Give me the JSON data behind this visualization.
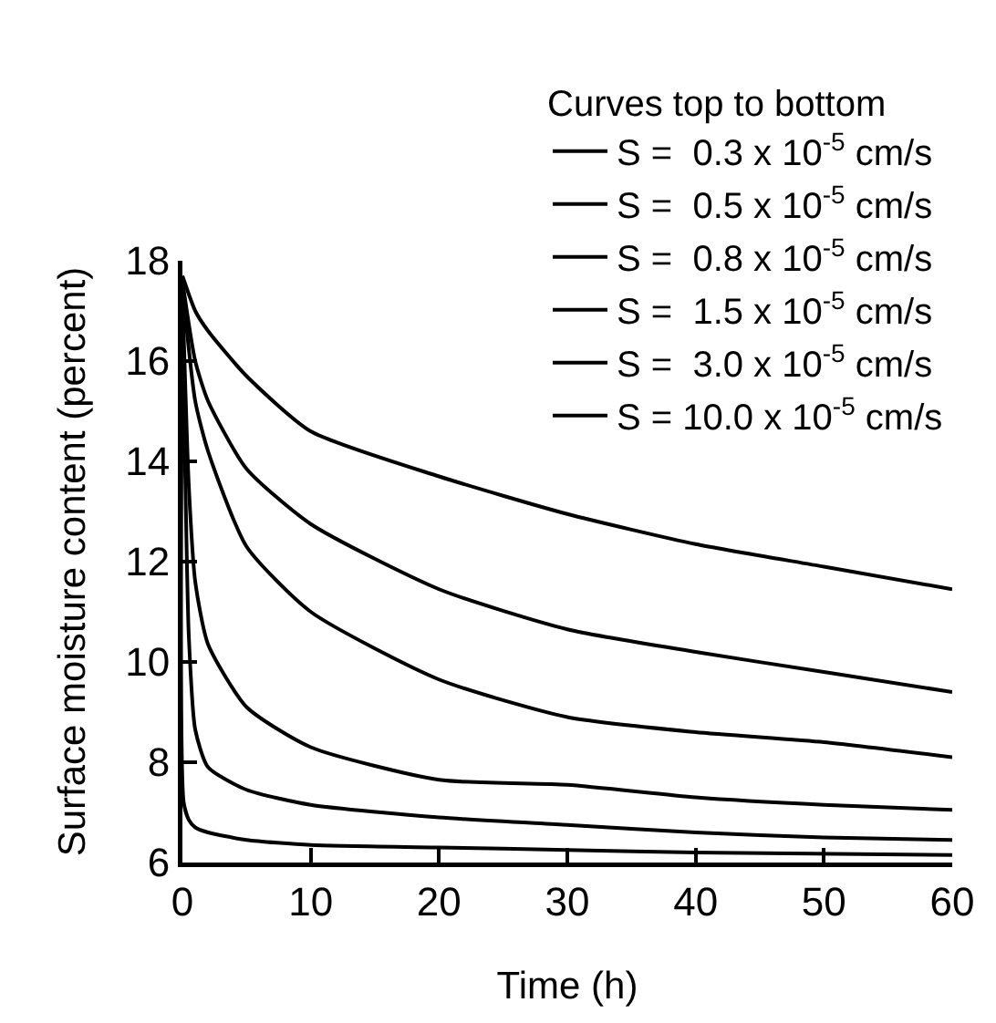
{
  "chart_data": {
    "type": "line",
    "xlabel": "Time (h)",
    "ylabel": "Surface moisture content (percent)",
    "legend_title": "Curves top to bottom",
    "legend": "top right",
    "grid": false,
    "marker": "none",
    "line_style": "solid",
    "xlim": [
      0,
      60
    ],
    "ylim": [
      6,
      18
    ],
    "xticks": [
      0,
      10,
      20,
      30,
      40,
      50,
      60
    ],
    "yticks": [
      6,
      8,
      10,
      12,
      14,
      16,
      18
    ],
    "series": [
      {
        "name": "S =  0.3 x 10$^{-5}$ cm/s",
        "color": "#000000",
        "x": [
          0,
          1,
          2,
          5,
          10,
          20,
          30,
          40,
          50,
          60
        ],
        "values": [
          17.7,
          17.0,
          16.6,
          15.7,
          14.6,
          13.7,
          12.95,
          12.35,
          11.9,
          11.45
        ]
      },
      {
        "name": "S =  0.5 x 10$^{-5}$ cm/s",
        "color": "#000000",
        "x": [
          0,
          1,
          2,
          5,
          10,
          20,
          30,
          40,
          50,
          60
        ],
        "values": [
          17.6,
          16.0,
          15.2,
          13.85,
          12.75,
          11.45,
          10.65,
          10.2,
          9.8,
          9.4
        ]
      },
      {
        "name": "S =  0.8 x 10$^{-5}$ cm/s",
        "color": "#000000",
        "x": [
          0,
          1,
          2,
          5,
          10,
          20,
          30,
          40,
          50,
          60
        ],
        "values": [
          17.5,
          15.2,
          14.2,
          12.3,
          11.0,
          9.65,
          8.9,
          8.6,
          8.4,
          8.1
        ]
      },
      {
        "name": "S =  1.5 x 10$^{-5}$ cm/s",
        "color": "#000000",
        "x": [
          0,
          0.5,
          1,
          2,
          5,
          10,
          20,
          30,
          40,
          50,
          60
        ],
        "values": [
          17.4,
          13.5,
          11.6,
          10.35,
          9.1,
          8.3,
          7.65,
          7.55,
          7.3,
          7.15,
          7.05
        ]
      },
      {
        "name": "S =  3.0 x 10$^{-5}$ cm/s",
        "color": "#000000",
        "x": [
          0,
          0.2,
          0.5,
          1,
          2,
          5,
          10,
          20,
          30,
          40,
          50,
          60
        ],
        "values": [
          17.3,
          14.0,
          10.5,
          8.65,
          7.9,
          7.45,
          7.15,
          6.9,
          6.75,
          6.6,
          6.5,
          6.45
        ]
      },
      {
        "name": "S = 10.0 x 10$^{-5}$ cm/s",
        "color": "#000000",
        "x": [
          0,
          0.1,
          0.5,
          1,
          2,
          5,
          10,
          20,
          30,
          40,
          60
        ],
        "values": [
          17.2,
          7.2,
          6.85,
          6.7,
          6.6,
          6.45,
          6.35,
          6.3,
          6.25,
          6.2,
          6.15
        ]
      }
    ]
  }
}
